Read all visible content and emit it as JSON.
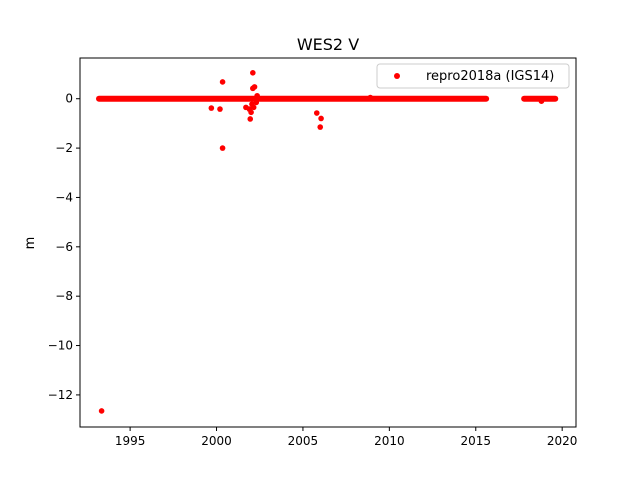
{
  "chart_data": {
    "type": "scatter",
    "title": "WES2 V",
    "xlabel": "",
    "ylabel": "m",
    "xlim": [
      1992.1,
      2020.8
    ],
    "ylim": [
      -13.3,
      1.65
    ],
    "xticks": [
      1995,
      2000,
      2005,
      2010,
      2015,
      2020
    ],
    "yticks": [
      0,
      -2,
      -4,
      -6,
      -8,
      -10,
      -12
    ],
    "ytick_labels": [
      "0",
      "−2",
      "−4",
      "−6",
      "−8",
      "−10",
      "−12"
    ],
    "grid": false,
    "legend_position": "top-right",
    "series": [
      {
        "name": "repro2018a (IGS14)",
        "color": "#ff0000",
        "marker": "circle",
        "dense_segments": [
          {
            "x_start": 1993.2,
            "x_end": 2015.6,
            "y": 0.0
          },
          {
            "x_start": 2017.8,
            "x_end": 2019.6,
            "y": 0.0
          }
        ],
        "points": [
          {
            "x": 1993.35,
            "y": -12.65
          },
          {
            "x": 1999.7,
            "y": -0.38
          },
          {
            "x": 2000.2,
            "y": -0.42
          },
          {
            "x": 2000.35,
            "y": 0.68
          },
          {
            "x": 2000.35,
            "y": -2.0
          },
          {
            "x": 2001.7,
            "y": -0.35
          },
          {
            "x": 2001.9,
            "y": -0.42
          },
          {
            "x": 2001.95,
            "y": -0.82
          },
          {
            "x": 2002.0,
            "y": -0.55
          },
          {
            "x": 2002.05,
            "y": -0.22
          },
          {
            "x": 2002.1,
            "y": 0.42
          },
          {
            "x": 2002.15,
            "y": -0.35
          },
          {
            "x": 2002.2,
            "y": 0.48
          },
          {
            "x": 2002.1,
            "y": 1.05
          },
          {
            "x": 2002.3,
            "y": -0.15
          },
          {
            "x": 2002.35,
            "y": 0.12
          },
          {
            "x": 2005.8,
            "y": -0.58
          },
          {
            "x": 2006.05,
            "y": -0.8
          },
          {
            "x": 2006.0,
            "y": -1.15
          },
          {
            "x": 2008.9,
            "y": 0.05
          },
          {
            "x": 2018.8,
            "y": -0.1
          }
        ]
      }
    ]
  }
}
